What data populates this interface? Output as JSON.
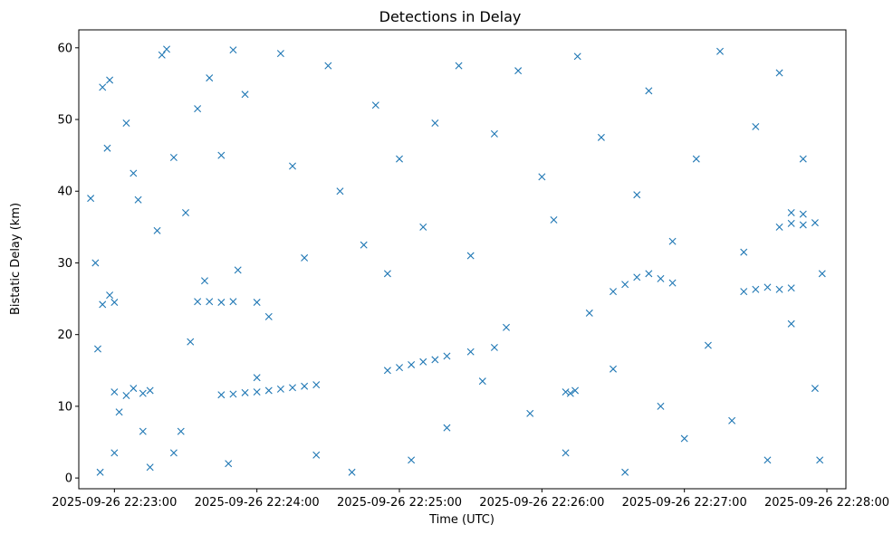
{
  "chart_data": {
    "type": "scatter",
    "title": "Detections in Delay",
    "xlabel": "Time (UTC)",
    "ylabel": "Bistatic Delay (km)",
    "x_ticks": [
      "2025-09-26 22:23:00",
      "2025-09-26 22:24:00",
      "2025-09-26 22:25:00",
      "2025-09-26 22:26:00",
      "2025-09-26 22:27:00",
      "2025-09-26 22:28:00"
    ],
    "y_ticks": [
      0,
      10,
      20,
      30,
      40,
      50,
      60
    ],
    "xlim": [
      "2025-09-26 22:22:45",
      "2025-09-26 22:28:08"
    ],
    "ylim": [
      -1.5,
      62.5
    ],
    "marker": "x",
    "color": "#1f77b4",
    "grid": false,
    "legend": "none",
    "series": [
      {
        "points": [
          [
            "2025-09-26 22:23:00",
            12
          ],
          [
            "2025-09-26 22:23:05",
            11.5
          ],
          [
            "2025-09-26 22:23:08",
            12.5
          ],
          [
            "2025-09-26 22:23:12",
            11.8
          ],
          [
            "2025-09-26 22:23:15",
            12.2
          ],
          [
            "2025-09-26 22:22:55",
            24.2
          ],
          [
            "2025-09-26 22:23:00",
            24.5
          ],
          [
            "2025-09-26 22:22:58",
            25.5
          ],
          [
            "2025-09-26 22:23:35",
            24.6
          ],
          [
            "2025-09-26 22:23:40",
            24.6
          ],
          [
            "2025-09-26 22:23:45",
            24.5
          ],
          [
            "2025-09-26 22:23:50",
            24.6
          ],
          [
            "2025-09-26 22:24:00",
            24.5
          ],
          [
            "2025-09-26 22:23:45",
            11.6
          ],
          [
            "2025-09-26 22:23:50",
            11.7
          ],
          [
            "2025-09-26 22:23:55",
            11.9
          ],
          [
            "2025-09-26 22:24:00",
            12.0
          ],
          [
            "2025-09-26 22:24:05",
            12.2
          ],
          [
            "2025-09-26 22:24:10",
            12.4
          ],
          [
            "2025-09-26 22:24:15",
            12.6
          ],
          [
            "2025-09-26 22:24:20",
            12.8
          ],
          [
            "2025-09-26 22:24:25",
            13.0
          ],
          [
            "2025-09-26 22:24:55",
            15
          ],
          [
            "2025-09-26 22:25:00",
            15.4
          ],
          [
            "2025-09-26 22:25:05",
            15.8
          ],
          [
            "2025-09-26 22:25:10",
            16.2
          ],
          [
            "2025-09-26 22:25:15",
            16.5
          ],
          [
            "2025-09-26 22:25:20",
            17.0
          ],
          [
            "2025-09-26 22:25:30",
            17.6
          ],
          [
            "2025-09-26 22:25:40",
            18.2
          ],
          [
            "2025-09-26 22:26:30",
            26
          ],
          [
            "2025-09-26 22:26:35",
            27
          ],
          [
            "2025-09-26 22:26:40",
            28
          ],
          [
            "2025-09-26 22:26:45",
            28.5
          ],
          [
            "2025-09-26 22:26:50",
            27.8
          ],
          [
            "2025-09-26 22:26:55",
            27.2
          ],
          [
            "2025-09-26 22:27:25",
            26
          ],
          [
            "2025-09-26 22:27:30",
            26.3
          ],
          [
            "2025-09-26 22:27:35",
            26.6
          ],
          [
            "2025-09-26 22:27:40",
            26.3
          ],
          [
            "2025-09-26 22:27:45",
            26.5
          ],
          [
            "2025-09-26 22:27:40",
            35
          ],
          [
            "2025-09-26 22:27:45",
            35.5
          ],
          [
            "2025-09-26 22:27:50",
            35.3
          ],
          [
            "2025-09-26 22:27:55",
            35.6
          ],
          [
            "2025-09-26 22:27:45",
            37
          ],
          [
            "2025-09-26 22:27:50",
            36.8
          ],
          [
            "2025-09-26 22:26:10",
            12
          ],
          [
            "2025-09-26 22:26:12",
            11.8
          ],
          [
            "2025-09-26 22:26:14",
            12.2
          ],
          [
            "2025-09-26 22:22:50",
            39
          ],
          [
            "2025-09-26 22:22:52",
            30
          ],
          [
            "2025-09-26 22:22:53",
            18
          ],
          [
            "2025-09-26 22:22:55",
            54.5
          ],
          [
            "2025-09-26 22:22:57",
            46
          ],
          [
            "2025-09-26 22:22:58",
            55.5
          ],
          [
            "2025-09-26 22:22:54",
            0.8
          ],
          [
            "2025-09-26 22:23:00",
            3.5
          ],
          [
            "2025-09-26 22:23:02",
            9.2
          ],
          [
            "2025-09-26 22:23:05",
            49.5
          ],
          [
            "2025-09-26 22:23:08",
            42.5
          ],
          [
            "2025-09-26 22:23:10",
            38.8
          ],
          [
            "2025-09-26 22:23:12",
            6.5
          ],
          [
            "2025-09-26 22:23:15",
            1.5
          ],
          [
            "2025-09-26 22:23:18",
            34.5
          ],
          [
            "2025-09-26 22:23:20",
            59
          ],
          [
            "2025-09-26 22:23:22",
            59.8
          ],
          [
            "2025-09-26 22:23:25",
            44.7
          ],
          [
            "2025-09-26 22:23:25",
            3.5
          ],
          [
            "2025-09-26 22:23:28",
            6.5
          ],
          [
            "2025-09-26 22:23:30",
            37
          ],
          [
            "2025-09-26 22:23:32",
            19
          ],
          [
            "2025-09-26 22:23:35",
            51.5
          ],
          [
            "2025-09-26 22:23:38",
            27.5
          ],
          [
            "2025-09-26 22:23:40",
            55.8
          ],
          [
            "2025-09-26 22:23:45",
            45
          ],
          [
            "2025-09-26 22:23:48",
            2
          ],
          [
            "2025-09-26 22:23:50",
            59.7
          ],
          [
            "2025-09-26 22:23:52",
            29
          ],
          [
            "2025-09-26 22:23:55",
            53.5
          ],
          [
            "2025-09-26 22:24:00",
            14
          ],
          [
            "2025-09-26 22:24:05",
            22.5
          ],
          [
            "2025-09-26 22:24:10",
            59.2
          ],
          [
            "2025-09-26 22:24:15",
            43.5
          ],
          [
            "2025-09-26 22:24:20",
            30.7
          ],
          [
            "2025-09-26 22:24:25",
            3.2
          ],
          [
            "2025-09-26 22:24:30",
            57.5
          ],
          [
            "2025-09-26 22:24:35",
            40
          ],
          [
            "2025-09-26 22:24:40",
            0.8
          ],
          [
            "2025-09-26 22:24:45",
            32.5
          ],
          [
            "2025-09-26 22:24:50",
            52
          ],
          [
            "2025-09-26 22:24:55",
            28.5
          ],
          [
            "2025-09-26 22:25:00",
            44.5
          ],
          [
            "2025-09-26 22:25:05",
            2.5
          ],
          [
            "2025-09-26 22:25:10",
            35
          ],
          [
            "2025-09-26 22:25:15",
            49.5
          ],
          [
            "2025-09-26 22:25:20",
            7
          ],
          [
            "2025-09-26 22:25:25",
            57.5
          ],
          [
            "2025-09-26 22:25:30",
            31
          ],
          [
            "2025-09-26 22:25:35",
            13.5
          ],
          [
            "2025-09-26 22:25:40",
            48
          ],
          [
            "2025-09-26 22:25:45",
            21
          ],
          [
            "2025-09-26 22:25:50",
            56.8
          ],
          [
            "2025-09-26 22:25:55",
            9
          ],
          [
            "2025-09-26 22:26:00",
            42
          ],
          [
            "2025-09-26 22:26:05",
            36
          ],
          [
            "2025-09-26 22:26:10",
            3.5
          ],
          [
            "2025-09-26 22:26:15",
            58.8
          ],
          [
            "2025-09-26 22:26:20",
            23
          ],
          [
            "2025-09-26 22:26:25",
            47.5
          ],
          [
            "2025-09-26 22:26:30",
            15.2
          ],
          [
            "2025-09-26 22:26:35",
            0.8
          ],
          [
            "2025-09-26 22:26:40",
            39.5
          ],
          [
            "2025-09-26 22:26:45",
            54
          ],
          [
            "2025-09-26 22:26:50",
            10
          ],
          [
            "2025-09-26 22:26:55",
            33
          ],
          [
            "2025-09-26 22:27:00",
            5.5
          ],
          [
            "2025-09-26 22:27:05",
            44.5
          ],
          [
            "2025-09-26 22:27:10",
            18.5
          ],
          [
            "2025-09-26 22:27:15",
            59.5
          ],
          [
            "2025-09-26 22:27:20",
            8
          ],
          [
            "2025-09-26 22:27:25",
            31.5
          ],
          [
            "2025-09-26 22:27:30",
            49
          ],
          [
            "2025-09-26 22:27:35",
            2.5
          ],
          [
            "2025-09-26 22:27:40",
            56.5
          ],
          [
            "2025-09-26 22:27:45",
            21.5
          ],
          [
            "2025-09-26 22:27:50",
            44.5
          ],
          [
            "2025-09-26 22:27:55",
            12.5
          ],
          [
            "2025-09-26 22:27:58",
            28.5
          ],
          [
            "2025-09-26 22:27:57",
            2.5
          ]
        ]
      }
    ]
  }
}
